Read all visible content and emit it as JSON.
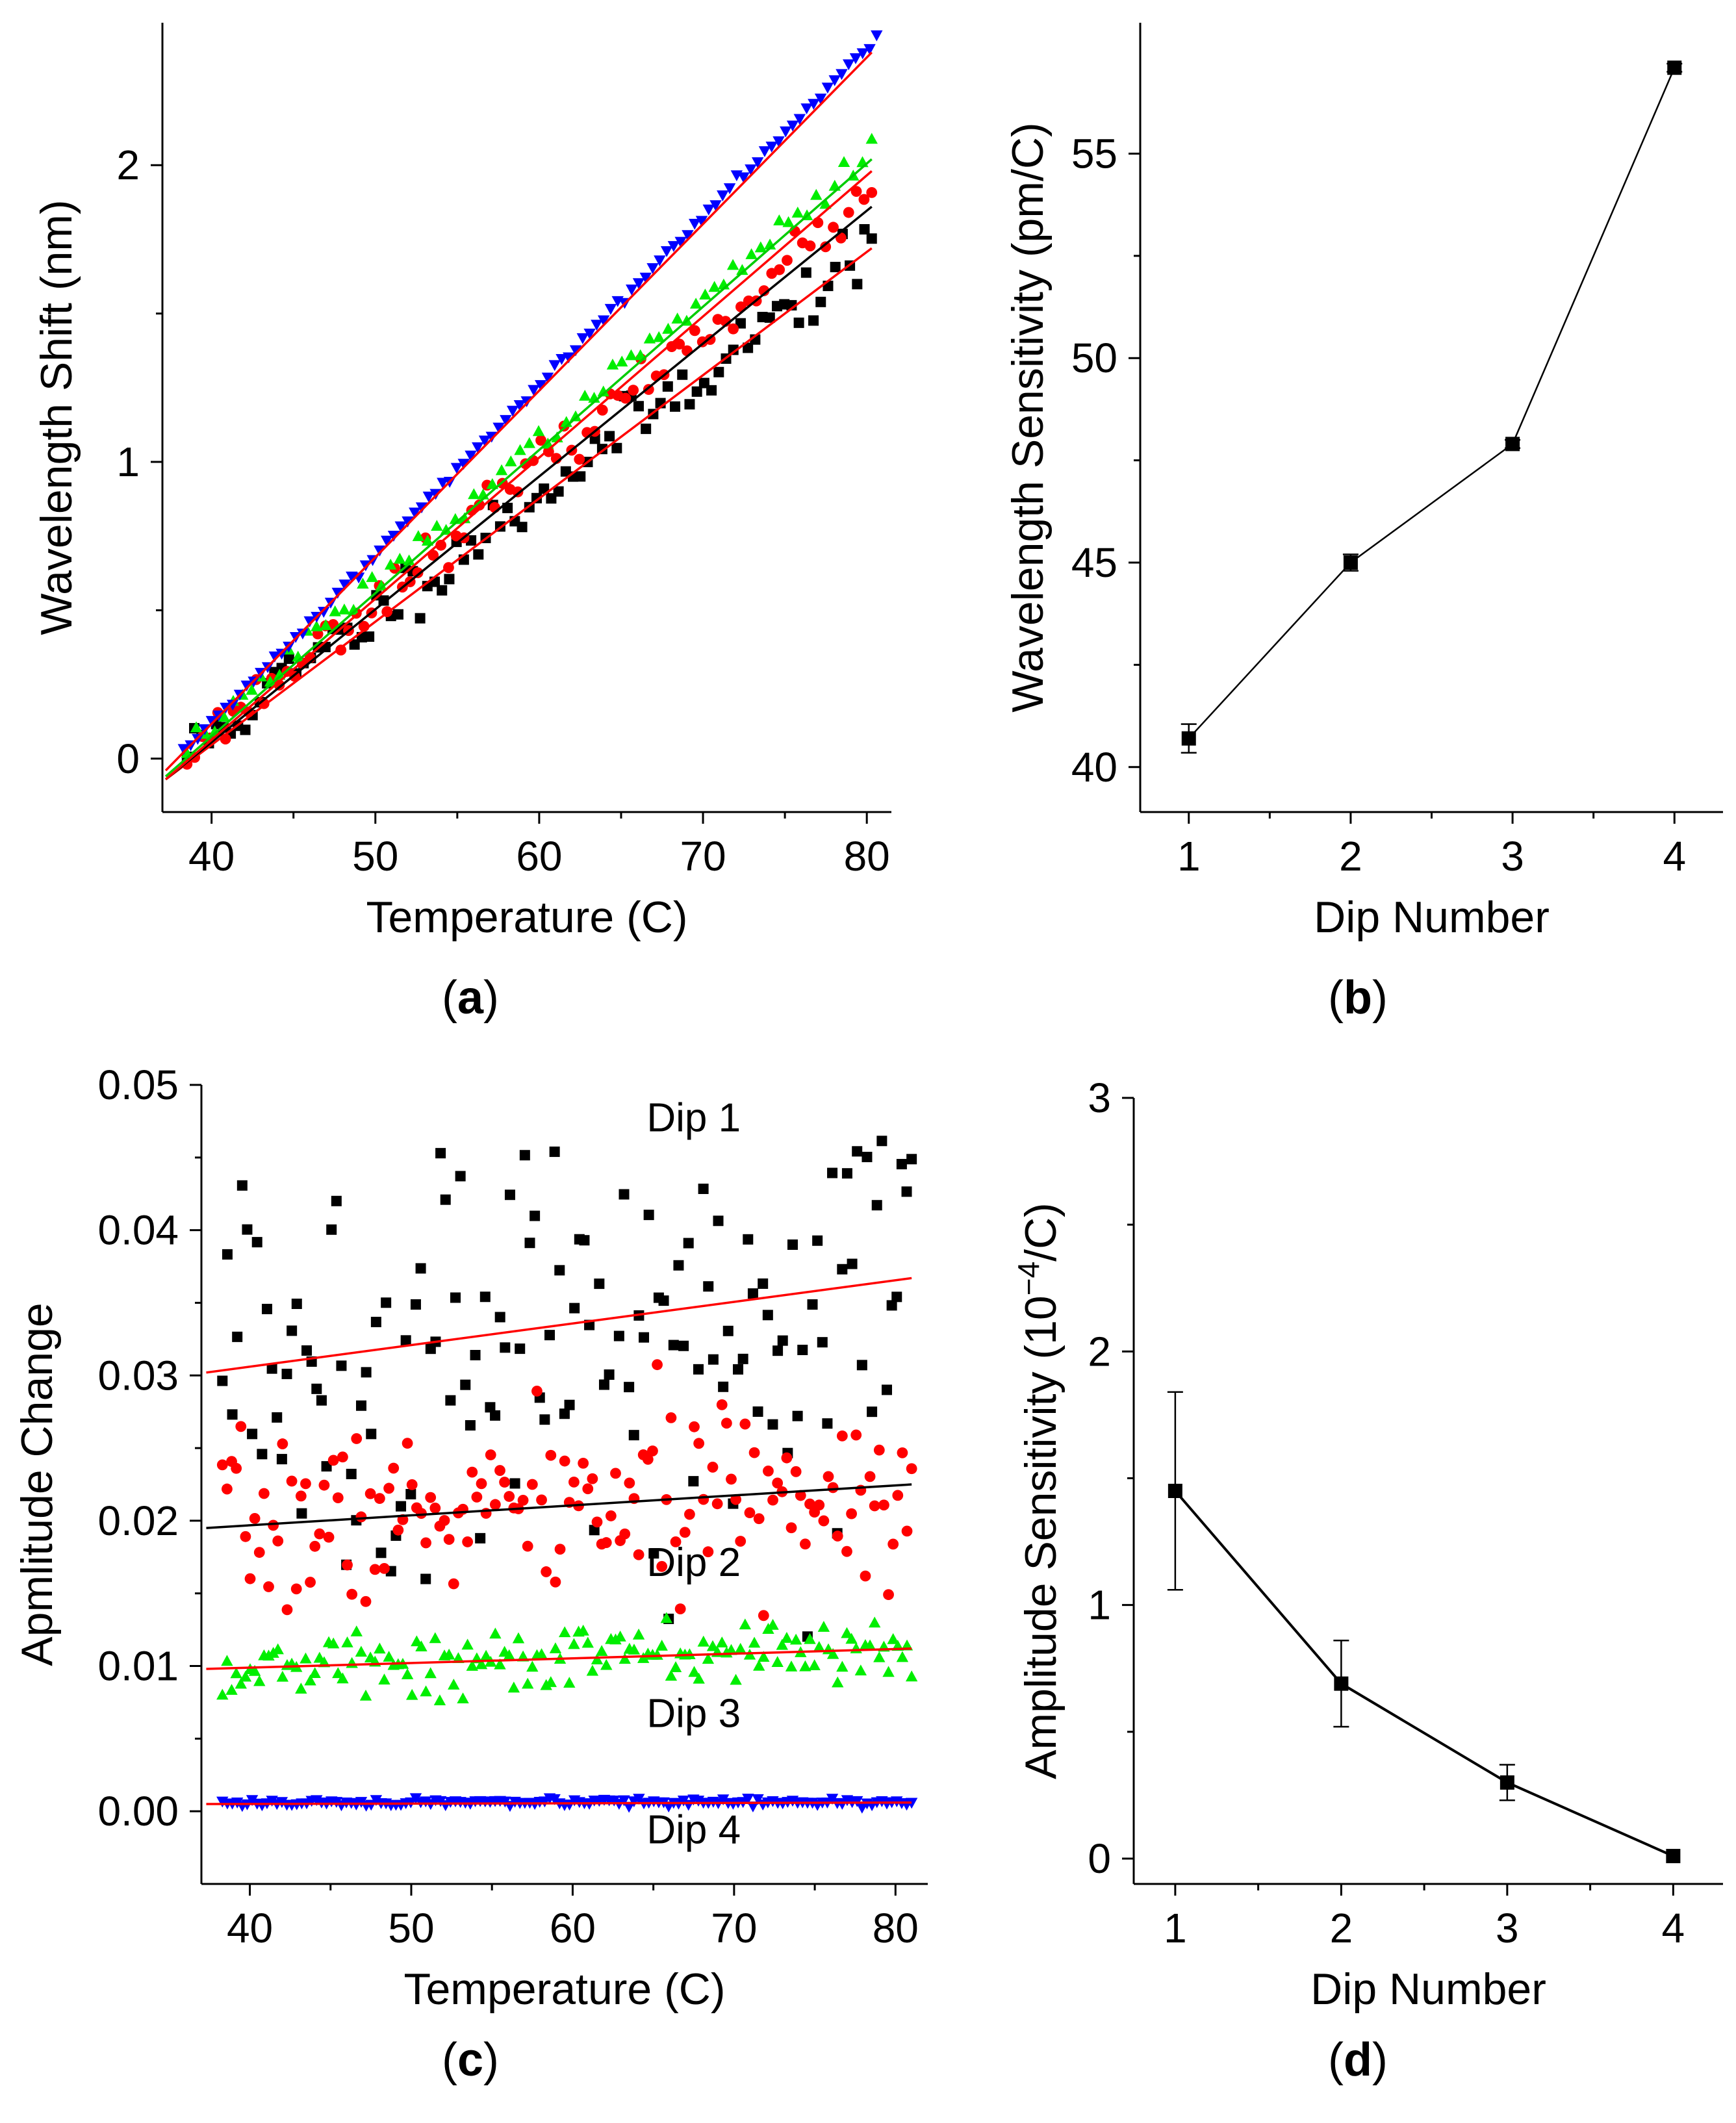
{
  "chart_data": [
    {
      "id": "a",
      "type": "scatter",
      "caption": "(a)",
      "caption_letter": "a",
      "xlabel": "Temperature (C)",
      "ylabel": "Wavelength Shift (nm)",
      "xlim": [
        37,
        81.5
      ],
      "ylim": [
        -0.18,
        2.48
      ],
      "xticks": [
        40,
        50,
        60,
        70,
        80
      ],
      "yticks": [
        0,
        1,
        2
      ],
      "series": [
        {
          "name": "Dip 1",
          "color": "#000000",
          "marker": "square",
          "x_range": [
            38.5,
            80.3
          ],
          "n": 95,
          "slope": 0.0407,
          "at_start": 0.02,
          "noise": 0.05,
          "seed": 11
        },
        {
          "name": "Dip 2",
          "color": "#ff0000",
          "marker": "circle",
          "x_range": [
            38.5,
            80.3
          ],
          "n": 90,
          "slope": 0.045,
          "at_start": 0.02,
          "noise": 0.035,
          "seed": 23
        },
        {
          "name": "Dip 3",
          "color": "#00ee00",
          "marker": "triangle-up",
          "x_range": [
            38.5,
            80.3
          ],
          "n": 75,
          "slope": 0.0479,
          "at_start": 0.04,
          "noise": 0.02,
          "seed": 37
        },
        {
          "name": "Dip 4",
          "color": "#0000ff",
          "marker": "triangle-down",
          "x_range": [
            38.3,
            80.6
          ],
          "n": 100,
          "slope": 0.0571,
          "at_start": 0.02,
          "noise": 0.008,
          "seed": 41
        }
      ],
      "fit_lines": [
        {
          "color": "#ff0000",
          "x": [
            37.2,
            80.3
          ],
          "y": [
            -0.07,
            1.72
          ]
        },
        {
          "color": "#000000",
          "x": [
            37.2,
            80.3
          ],
          "y": [
            -0.07,
            1.86
          ]
        },
        {
          "color": "#ff0000",
          "x": [
            37.2,
            80.3
          ],
          "y": [
            -0.07,
            1.98
          ]
        },
        {
          "color": "#00cc00",
          "x": [
            37.2,
            80.3
          ],
          "y": [
            -0.06,
            2.02
          ]
        },
        {
          "color": "#ff0000",
          "x": [
            37.2,
            80.3
          ],
          "y": [
            -0.04,
            2.38
          ]
        }
      ]
    },
    {
      "id": "b",
      "type": "line",
      "caption": "(b)",
      "caption_letter": "b",
      "xlabel": "Dip Number",
      "ylabel": "Wavelength Sensitivity (pm/C)",
      "xlim": [
        0.7,
        4.3
      ],
      "ylim": [
        38.9,
        58.2
      ],
      "xticks": [
        1,
        2,
        3,
        4
      ],
      "yticks": [
        40,
        45,
        50,
        55
      ],
      "x": [
        1,
        2,
        3,
        4
      ],
      "y": [
        40.7,
        45.0,
        47.9,
        57.1
      ],
      "err": [
        0.35,
        0.2,
        0.1,
        0.1
      ],
      "color": "#000000"
    },
    {
      "id": "c",
      "type": "scatter",
      "caption": "(c)",
      "caption_letter": "c",
      "xlabel": "Temperature (C)",
      "ylabel": "Apmlitude Change",
      "xlim": [
        37,
        82
      ],
      "ylim": [
        -0.005,
        0.05
      ],
      "xticks": [
        40,
        50,
        60,
        70,
        80
      ],
      "yticks": [
        0.0,
        0.01,
        0.02,
        0.03,
        0.04,
        0.05
      ],
      "ytick_labels": [
        "0.00",
        "0.01",
        "0.02",
        "0.03",
        "0.04",
        "0.05"
      ],
      "annotations": [
        {
          "text": "Dip 1",
          "x": 67.5,
          "y": 0.0468
        },
        {
          "text": "Dip 2",
          "x": 67.5,
          "y": 0.0162
        },
        {
          "text": "Dip 3",
          "x": 67.5,
          "y": 0.0058
        },
        {
          "text": "Dip 4",
          "x": 67.5,
          "y": -0.0022
        }
      ],
      "series": [
        {
          "name": "Dip 1",
          "color": "#000000",
          "marker": "square",
          "x_range": [
            38.3,
            81
          ],
          "n": 140,
          "center_start": 0.031,
          "center_end": 0.036,
          "noise": 0.0072,
          "seed": 5
        },
        {
          "name": "Dip 2",
          "color": "#ff0000",
          "marker": "circle",
          "x_range": [
            38.3,
            81
          ],
          "n": 150,
          "center_start": 0.0195,
          "center_end": 0.0225,
          "noise": 0.003,
          "seed": 7
        },
        {
          "name": "Dip 3",
          "color": "#00ee00",
          "marker": "triangle-up",
          "x_range": [
            38.3,
            81
          ],
          "n": 150,
          "center_start": 0.0098,
          "center_end": 0.0112,
          "noise": 0.0011,
          "seed": 13
        },
        {
          "name": "Dip 4",
          "color": "#0000ff",
          "marker": "triangle-down",
          "x_range": [
            38.3,
            81
          ],
          "n": 140,
          "center_start": 0.0006,
          "center_end": 0.0006,
          "noise": 0.00012,
          "seed": 17
        }
      ],
      "fit_lines": [
        {
          "color": "#ff0000",
          "x": [
            37.3,
            81
          ],
          "y": [
            0.0302,
            0.0367
          ]
        },
        {
          "color": "#000000",
          "x": [
            37.3,
            81
          ],
          "y": [
            0.0195,
            0.0225
          ]
        },
        {
          "color": "#ff0000",
          "x": [
            37.3,
            81
          ],
          "y": [
            0.0098,
            0.0112
          ]
        },
        {
          "color": "#ff0000",
          "x": [
            37.3,
            81
          ],
          "y": [
            0.0005,
            0.0006
          ]
        }
      ]
    },
    {
      "id": "d",
      "type": "line",
      "caption": "(d)",
      "caption_letter": "d",
      "xlabel": "Dip Number",
      "ylabel_main": "Amplitude Sensitivity (10",
      "ylabel_sup": "−4",
      "ylabel_end": "/C)",
      "xlim": [
        0.75,
        4.3
      ],
      "ylim": [
        -0.1,
        3.0
      ],
      "xticks": [
        1,
        2,
        3,
        4
      ],
      "yticks": [
        0,
        1,
        2,
        3
      ],
      "x": [
        1,
        2,
        3,
        4
      ],
      "y": [
        1.45,
        0.69,
        0.3,
        0.01
      ],
      "err": [
        0.39,
        0.17,
        0.07,
        0.0
      ],
      "color": "#000000"
    }
  ]
}
